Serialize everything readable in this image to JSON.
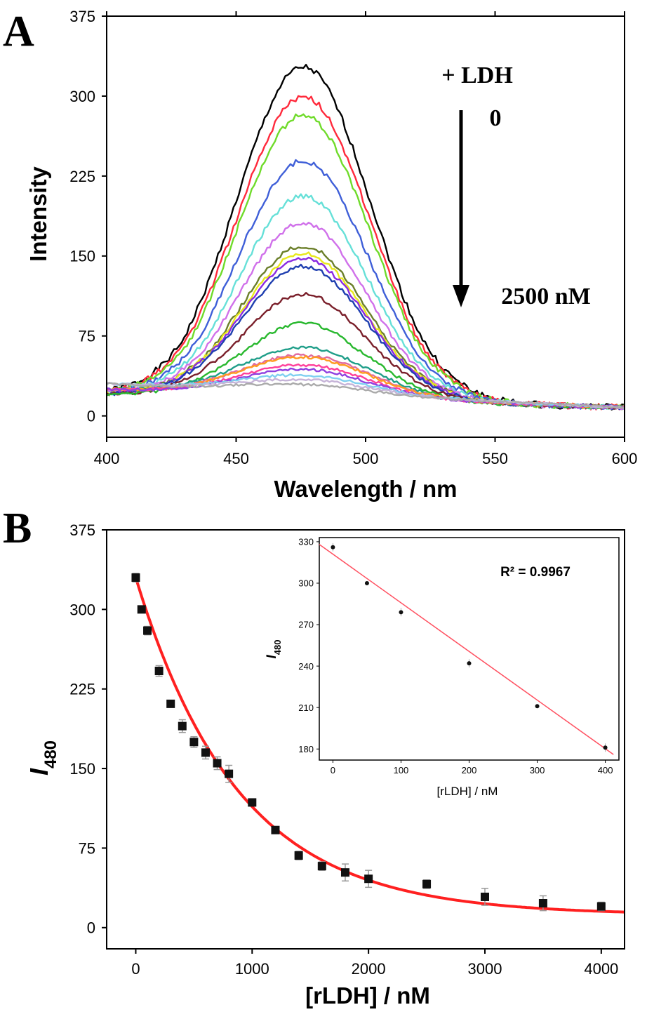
{
  "chart_data": [
    {
      "panel": "A",
      "type": "line",
      "title": "",
      "xlabel": "Wavelength / nm",
      "ylabel": "Intensity",
      "xlim": [
        400,
        600
      ],
      "ylim": [
        -20,
        375
      ],
      "xticks": [
        400,
        450,
        500,
        550,
        600
      ],
      "yticks": [
        0,
        75,
        150,
        225,
        300,
        375
      ],
      "grid": false,
      "legend": "none",
      "annotations": {
        "top": "+ LDH",
        "start": "0",
        "end": "2500 nM"
      },
      "peak_wavelength": 476,
      "shape_note": "Gaussian-like emission bands; curves cross near 420 nm and 585 nm",
      "series": [
        {
          "peak": 333,
          "color": "#000000"
        },
        {
          "peak": 305,
          "color": "#ff2a3c"
        },
        {
          "peak": 288,
          "color": "#6fdb2a"
        },
        {
          "peak": 245,
          "color": "#3f5fd8"
        },
        {
          "peak": 212,
          "color": "#66e0d8"
        },
        {
          "peak": 187,
          "color": "#d070ea"
        },
        {
          "peak": 165,
          "color": "#6b7f2a"
        },
        {
          "peak": 158,
          "color": "#e8e81e"
        },
        {
          "peak": 153,
          "color": "#8a2be2"
        },
        {
          "peak": 146,
          "color": "#1f3fb0"
        },
        {
          "peak": 120,
          "color": "#7a1f2a"
        },
        {
          "peak": 93,
          "color": "#28b82e"
        },
        {
          "peak": 68,
          "color": "#1f9e89"
        },
        {
          "peak": 59,
          "color": "#e06aa0"
        },
        {
          "peak": 57,
          "color": "#ff9a20"
        },
        {
          "peak": 48,
          "color": "#ff3f9a"
        },
        {
          "peak": 43,
          "color": "#9040e0"
        },
        {
          "peak": 33,
          "color": "#7fd0f0"
        },
        {
          "peak": 28,
          "color": "#c6b4d8"
        },
        {
          "peak": 22,
          "color": "#aaaaaa"
        }
      ]
    },
    {
      "panel": "B",
      "type": "scatter",
      "title": "",
      "xlabel": "[rLDH] / nM",
      "ylabel": "I",
      "ylabel_sub": "480",
      "xlim": [
        -250,
        4200
      ],
      "ylim": [
        -20,
        375
      ],
      "xticks": [
        0,
        1000,
        2000,
        3000,
        4000
      ],
      "yticks": [
        0,
        75,
        150,
        225,
        300,
        375
      ],
      "grid": false,
      "points": [
        {
          "x": 0,
          "y": 330,
          "err": 4
        },
        {
          "x": 50,
          "y": 300,
          "err": 3
        },
        {
          "x": 100,
          "y": 280,
          "err": 4
        },
        {
          "x": 200,
          "y": 242,
          "err": 5
        },
        {
          "x": 300,
          "y": 211,
          "err": 3
        },
        {
          "x": 400,
          "y": 190,
          "err": 6
        },
        {
          "x": 500,
          "y": 175,
          "err": 5
        },
        {
          "x": 600,
          "y": 165,
          "err": 6
        },
        {
          "x": 700,
          "y": 155,
          "err": 6
        },
        {
          "x": 800,
          "y": 145,
          "err": 8
        },
        {
          "x": 1000,
          "y": 118,
          "err": 3
        },
        {
          "x": 1200,
          "y": 92,
          "err": 3
        },
        {
          "x": 1400,
          "y": 68,
          "err": 4
        },
        {
          "x": 1600,
          "y": 58,
          "err": 4
        },
        {
          "x": 1800,
          "y": 52,
          "err": 8
        },
        {
          "x": 2000,
          "y": 46,
          "err": 8
        },
        {
          "x": 2500,
          "y": 41,
          "err": 4
        },
        {
          "x": 3000,
          "y": 29,
          "err": 8
        },
        {
          "x": 3500,
          "y": 23,
          "err": 7
        },
        {
          "x": 4000,
          "y": 20,
          "err": 4
        }
      ],
      "fit": {
        "type": "exponential-decay",
        "y0": 12,
        "A": 318,
        "t": 880,
        "color": "#ff2020"
      },
      "inset": {
        "type": "scatter",
        "xlabel": "[rLDH] / nM",
        "ylabel": "I",
        "ylabel_sub": "480",
        "xlim": [
          -20,
          420
        ],
        "ylim": [
          172,
          333
        ],
        "xticks": [
          0,
          100,
          200,
          300,
          400
        ],
        "yticks": [
          180,
          210,
          240,
          270,
          300,
          330
        ],
        "annotation": "R² = 0.9967",
        "points": [
          {
            "x": 0,
            "y": 326,
            "err": 3
          },
          {
            "x": 50,
            "y": 300,
            "err": 1
          },
          {
            "x": 100,
            "y": 279,
            "err": 3
          },
          {
            "x": 200,
            "y": 242,
            "err": 3
          },
          {
            "x": 300,
            "y": 211,
            "err": 1
          },
          {
            "x": 400,
            "y": 181,
            "err": 3
          }
        ],
        "fit": {
          "type": "linear",
          "slope": -0.352,
          "intercept": 321,
          "color": "#ff5060"
        }
      }
    }
  ],
  "labels": {
    "panel_a": "A",
    "panel_b": "B"
  }
}
